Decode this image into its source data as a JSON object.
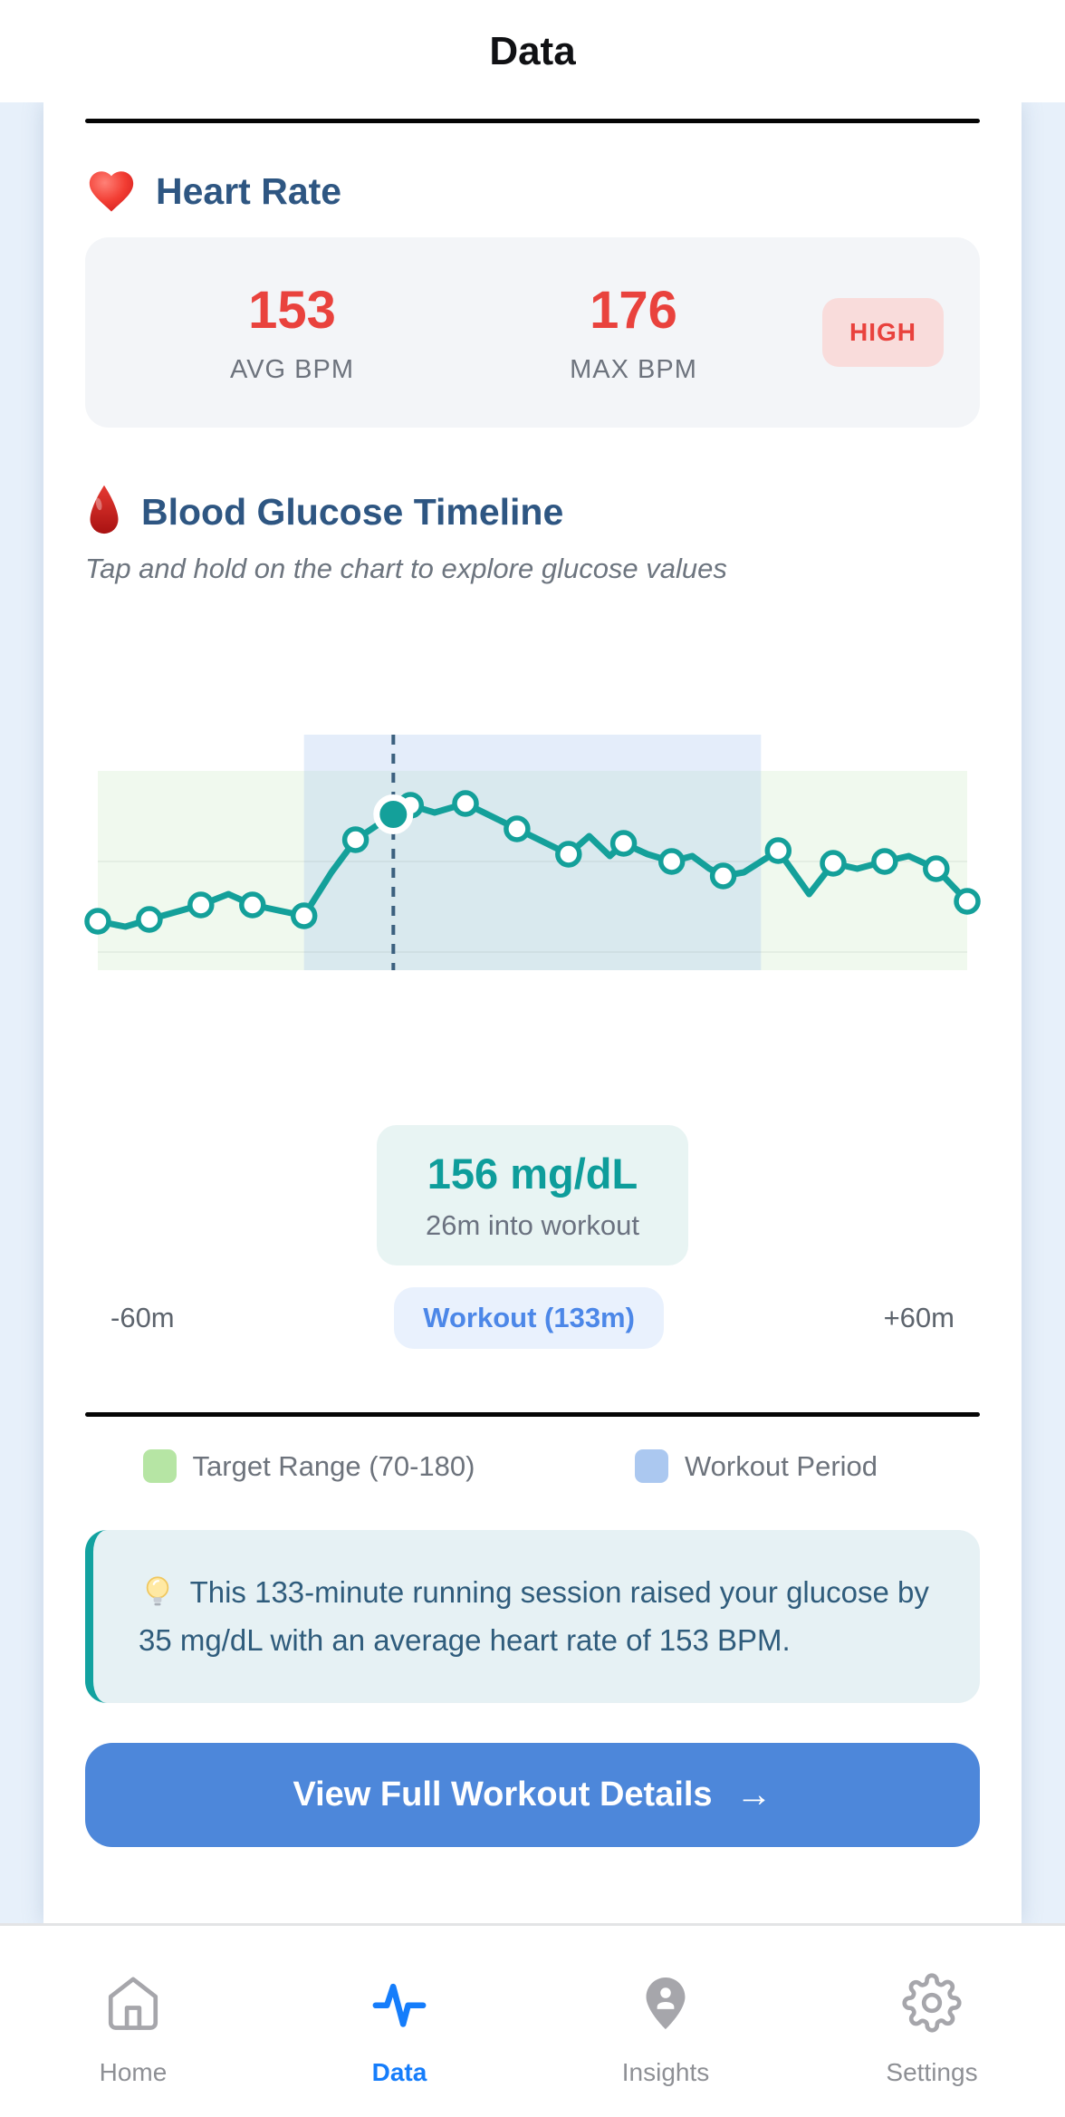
{
  "header": {
    "title": "Data"
  },
  "heart_rate": {
    "title": "Heart Rate",
    "avg_value": "153",
    "avg_label": "AVG BPM",
    "max_value": "176",
    "max_label": "MAX BPM",
    "badge": "HIGH"
  },
  "glucose": {
    "title": "Blood Glucose Timeline",
    "subtitle": "Tap and hold on the chart to explore glucose values",
    "tooltip_value": "156 mg/dL",
    "tooltip_caption": "26m into workout",
    "axis_start": "-60m",
    "workout_pill": "Workout (133m)",
    "axis_end": "+60m",
    "legend_target": "Target Range (70-180)",
    "legend_workout": "Workout Period"
  },
  "insight": {
    "text": "This 133-minute running session raised your glucose by 35 mg/dL with an average heart rate of 153 BPM."
  },
  "cta": {
    "label": "View Full Workout Details",
    "arrow": "→"
  },
  "nav": {
    "items": [
      {
        "label": "Home",
        "icon": "home-icon",
        "active": false
      },
      {
        "label": "Data",
        "icon": "activity-icon",
        "active": true
      },
      {
        "label": "Insights",
        "icon": "person-pin-icon",
        "active": false
      },
      {
        "label": "Settings",
        "icon": "gear-icon",
        "active": false
      }
    ]
  },
  "colors": {
    "accent_teal": "#14a09a",
    "heading_blue": "#2e5682",
    "alert_red": "#e9423d",
    "badge_bg": "#f9dcdb",
    "target_range_green": "#f0f9ee",
    "legend_green": "#b6e5a4",
    "workout_blue_overlay": "rgba(164,197,238,0.30)",
    "legend_blue": "#abc8f0",
    "dashed_line": "#3b607e",
    "tooltip_teal": "#0e9d9b",
    "button_blue": "#4d87da",
    "nav_active_blue": "#157dfb",
    "nav_gray": "#a6a6ab"
  },
  "chart_data": {
    "type": "line",
    "title": "Blood Glucose Timeline",
    "x_unit": "minutes relative to workout start",
    "x_range": [
      -60,
      193
    ],
    "y_unit": "mg/dL",
    "target_range": [
      70,
      180
    ],
    "workout_period_minutes": [
      0,
      133
    ],
    "workout_duration_label": "Workout (133m)",
    "gridlines_mgdl": [
      130,
      80
    ],
    "grid": "minimal",
    "legend_position": "below",
    "selected_point": {
      "t": 26,
      "glucose": 156
    },
    "points": [
      {
        "t": -60,
        "glucose": 97,
        "marker": true
      },
      {
        "t": -52,
        "glucose": 94,
        "marker": false
      },
      {
        "t": -45,
        "glucose": 98,
        "marker": true
      },
      {
        "t": -30,
        "glucose": 106,
        "marker": true
      },
      {
        "t": -22,
        "glucose": 112,
        "marker": false
      },
      {
        "t": -15,
        "glucose": 106,
        "marker": true
      },
      {
        "t": 0,
        "glucose": 100,
        "marker": true
      },
      {
        "t": 8,
        "glucose": 124,
        "marker": false
      },
      {
        "t": 15,
        "glucose": 142,
        "marker": true
      },
      {
        "t": 26,
        "glucose": 156,
        "marker": true,
        "selected": true
      },
      {
        "t": 31,
        "glucose": 161,
        "marker": true
      },
      {
        "t": 38,
        "glucose": 157,
        "marker": false
      },
      {
        "t": 47,
        "glucose": 162,
        "marker": true
      },
      {
        "t": 62,
        "glucose": 148,
        "marker": true
      },
      {
        "t": 77,
        "glucose": 134,
        "marker": true
      },
      {
        "t": 83,
        "glucose": 144,
        "marker": false
      },
      {
        "t": 89,
        "glucose": 133,
        "marker": false
      },
      {
        "t": 93,
        "glucose": 140,
        "marker": true
      },
      {
        "t": 100,
        "glucose": 134,
        "marker": false
      },
      {
        "t": 107,
        "glucose": 130,
        "marker": true
      },
      {
        "t": 113,
        "glucose": 133,
        "marker": false
      },
      {
        "t": 118,
        "glucose": 126,
        "marker": false
      },
      {
        "t": 122,
        "glucose": 122,
        "marker": true
      },
      {
        "t": 128,
        "glucose": 124,
        "marker": false
      },
      {
        "t": 138,
        "glucose": 136,
        "marker": true
      },
      {
        "t": 147,
        "glucose": 112,
        "marker": false
      },
      {
        "t": 154,
        "glucose": 129,
        "marker": true
      },
      {
        "t": 161,
        "glucose": 126,
        "marker": false
      },
      {
        "t": 169,
        "glucose": 130,
        "marker": true
      },
      {
        "t": 176,
        "glucose": 133,
        "marker": false
      },
      {
        "t": 184,
        "glucose": 126,
        "marker": true
      },
      {
        "t": 193,
        "glucose": 108,
        "marker": true
      }
    ]
  }
}
